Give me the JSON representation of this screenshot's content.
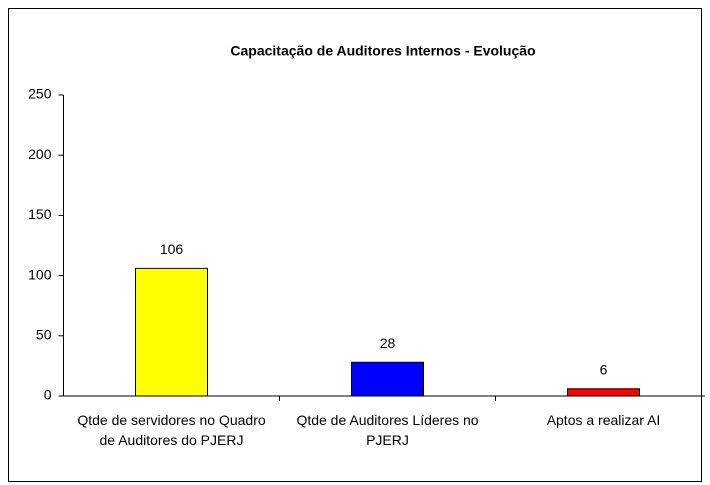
{
  "chart_data": {
    "type": "bar",
    "title": "Capacitação de Auditores Internos - Evolução",
    "categories": [
      "Qtde de servidores no Quadro de Auditores do PJERJ",
      "Qtde de Auditores Líderes no PJERJ",
      "Aptos a realizar AI"
    ],
    "values": [
      106,
      28,
      6
    ],
    "colors": [
      "#ffff00",
      "#0000ff",
      "#ff0000"
    ],
    "ylim": [
      0,
      250
    ],
    "yticks": [
      0,
      50,
      100,
      150,
      200,
      250
    ],
    "grid": false
  }
}
